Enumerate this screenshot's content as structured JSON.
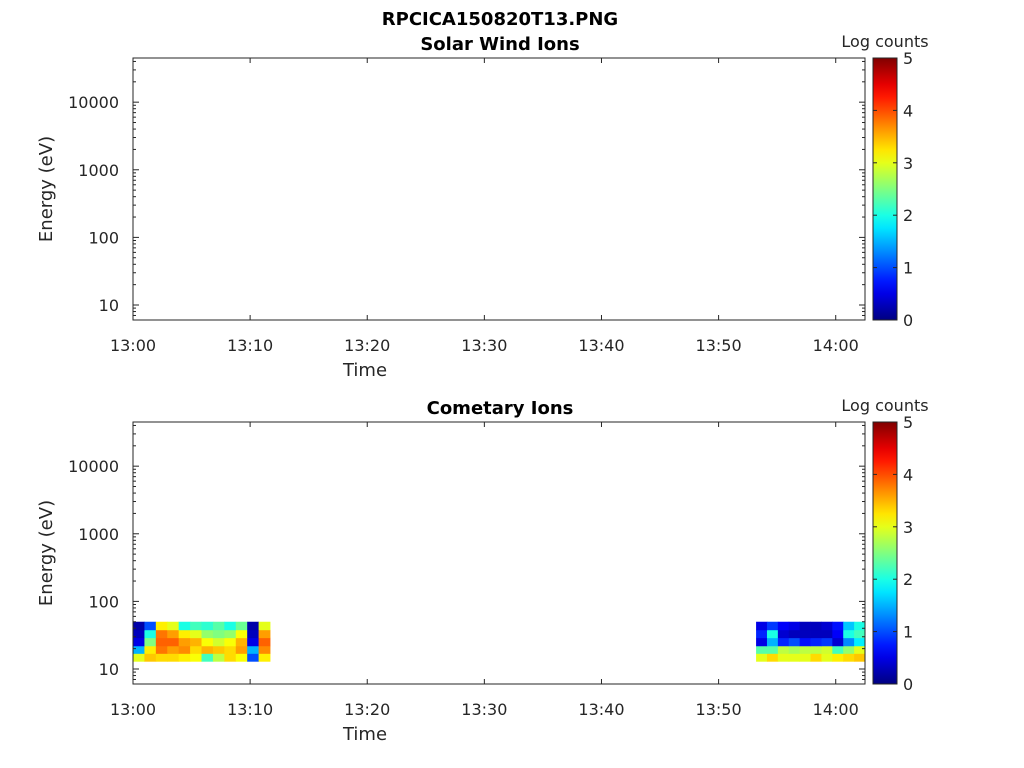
{
  "figure": {
    "title": "RPCICA150820T13.PNG"
  },
  "chart_data": [
    {
      "type": "heatmap",
      "title": "Solar Wind Ions",
      "xlabel": "Time",
      "ylabel": "Energy (eV)",
      "x_ticks": [
        "13:00",
        "13:10",
        "13:20",
        "13:30",
        "13:40",
        "13:50",
        "14:00"
      ],
      "x_range_minutes": [
        0,
        62.5
      ],
      "y_scale": "log",
      "y_ticks": [
        "10",
        "100",
        "1000",
        "10000"
      ],
      "y_range": [
        6,
        45000
      ],
      "colorbar": {
        "label": "Log counts",
        "ticks": [
          "0",
          "1",
          "2",
          "3",
          "4",
          "5"
        ],
        "range": [
          0,
          5
        ],
        "colormap": "jet"
      },
      "grid": false,
      "blocks": []
    },
    {
      "type": "heatmap",
      "title": "Cometary Ions",
      "xlabel": "Time",
      "ylabel": "Energy (eV)",
      "x_ticks": [
        "13:00",
        "13:10",
        "13:20",
        "13:30",
        "13:40",
        "13:50",
        "14:00"
      ],
      "x_range_minutes": [
        0,
        62.5
      ],
      "y_scale": "log",
      "y_ticks": [
        "10",
        "100",
        "1000",
        "10000"
      ],
      "y_range": [
        6,
        45000
      ],
      "colorbar": {
        "label": "Log counts",
        "ticks": [
          "0",
          "1",
          "2",
          "3",
          "4",
          "5"
        ],
        "range": [
          0,
          5
        ],
        "colormap": "jet"
      },
      "grid": false,
      "blocks": [
        {
          "t_start": 0,
          "t_end": 11.7,
          "energy_bins": [
            13,
            17,
            22,
            29,
            38,
            50
          ],
          "time_columns": [
            0,
            1,
            2,
            3,
            4,
            5,
            6,
            7,
            8,
            9,
            10,
            11
          ],
          "log_counts": [
            [
              3.0,
              3.4,
              3.3,
              3.3,
              3.2,
              3.1,
              2.2,
              2.8,
              3.3,
              3.1,
              1.0,
              3.2
            ],
            [
              1.5,
              3.2,
              3.8,
              3.6,
              3.7,
              3.3,
              3.5,
              3.4,
              3.3,
              3.6,
              1.5,
              3.7
            ],
            [
              0.5,
              2.5,
              3.9,
              3.9,
              3.6,
              3.5,
              3.1,
              2.9,
              3.1,
              3.5,
              0.5,
              3.9
            ],
            [
              0.3,
              2.0,
              3.8,
              3.6,
              3.2,
              3.0,
              2.6,
              2.5,
              2.6,
              3.1,
              0.3,
              3.6
            ],
            [
              0.2,
              1.0,
              3.2,
              3.0,
              2.0,
              2.2,
              2.1,
              2.3,
              2.0,
              2.4,
              0.2,
              3.0
            ]
          ]
        },
        {
          "t_start": 53.2,
          "t_end": 62.5,
          "energy_bins": [
            13,
            17,
            22,
            29,
            38,
            50
          ],
          "time_columns": [
            0,
            1,
            2,
            3,
            4,
            5,
            6,
            7,
            8,
            9
          ],
          "log_counts": [
            [
              3.0,
              3.3,
              3.0,
              3.0,
              3.0,
              3.3,
              3.0,
              3.2,
              3.3,
              3.4
            ],
            [
              2.3,
              2.3,
              2.8,
              2.7,
              2.8,
              2.8,
              2.9,
              2.2,
              2.6,
              3.0
            ],
            [
              0.5,
              1.5,
              0.8,
              1.0,
              0.7,
              0.8,
              0.9,
              0.4,
              1.3,
              1.8
            ],
            [
              0.8,
              2.0,
              0.4,
              0.3,
              0.3,
              0.3,
              0.3,
              0.6,
              2.0,
              2.2
            ],
            [
              0.5,
              0.9,
              0.6,
              0.5,
              0.3,
              0.3,
              0.4,
              0.7,
              1.6,
              2.0
            ]
          ]
        }
      ]
    }
  ]
}
